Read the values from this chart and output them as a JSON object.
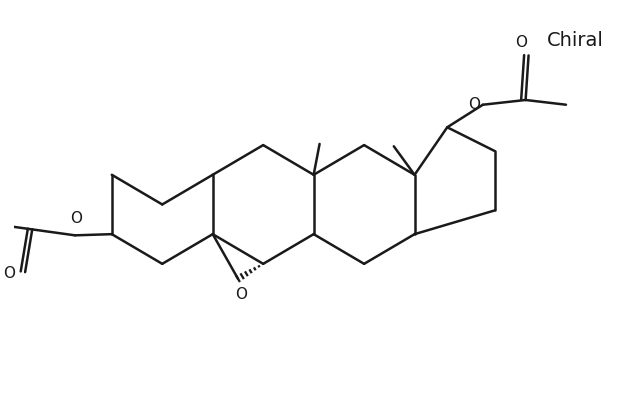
{
  "background_color": "#ffffff",
  "line_color": "#1a1a1a",
  "line_width": 1.8,
  "chiral_text": "Chiral",
  "chiral_fontsize": 14,
  "label_fontsize": 11,
  "figsize": [
    6.4,
    4.03
  ],
  "dpi": 100,
  "xlim": [
    -1.5,
    9.0
  ],
  "ylim": [
    0.8,
    6.8
  ]
}
